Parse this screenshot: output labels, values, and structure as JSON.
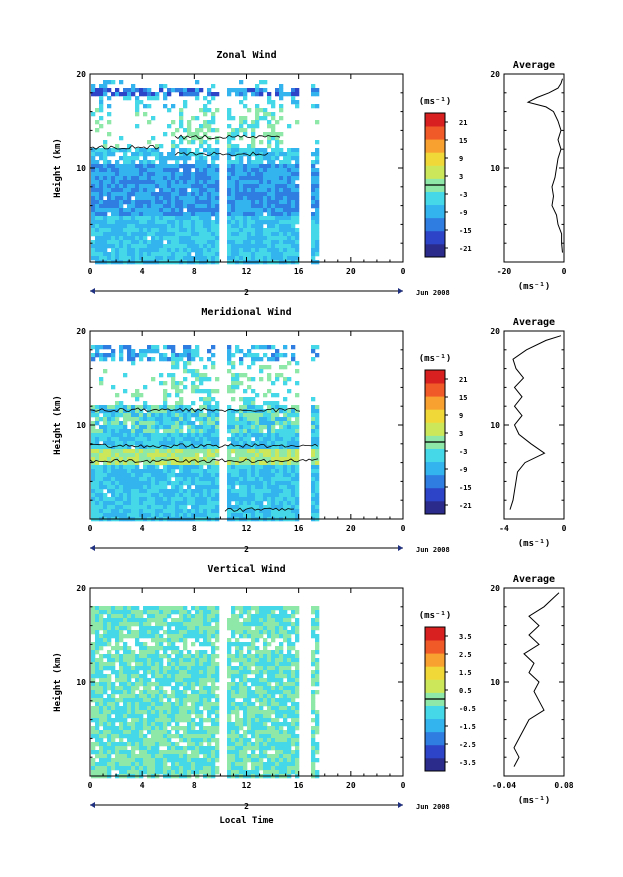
{
  "figure": {
    "xlabel": "Local Time",
    "date_label": "Jun 2008",
    "day_label": "2",
    "y_axis_label": "Height (km)",
    "unit_label": "(ms⁻¹)",
    "average_title": "Average",
    "average_unit": "(ms⁻¹)",
    "x_tick_labels": [
      "0",
      "4",
      "8",
      "12",
      "16",
      "20",
      "0"
    ],
    "y_tick_labels": [
      "10",
      "20"
    ]
  },
  "chart_data": [
    {
      "type": "heatmap",
      "title": "Zonal Wind",
      "x_range": [
        0,
        24
      ],
      "y_range": [
        0,
        20
      ],
      "data_gaps_hours": [
        [
          9.9,
          10.3
        ],
        [
          16.2,
          16.7
        ]
      ],
      "data_end_hour": 17.4,
      "colorbar": {
        "ticks": [
          "21",
          "15",
          "9",
          "3",
          "-3",
          "-9",
          "-15",
          "-21"
        ],
        "min": -24,
        "max": 24,
        "colors": [
          "#2b2b8c",
          "#2d44c8",
          "#2f7de0",
          "#34b4ee",
          "#44d8e8",
          "#8ee8a8",
          "#cce85a",
          "#f0d838",
          "#f8a030",
          "#f05a28",
          "#d82020"
        ]
      },
      "average_profile": {
        "xlim": [
          -20,
          0
        ],
        "x_tick_labels": [
          "-20",
          "0"
        ],
        "height_km": [
          1.0,
          2.0,
          3.0,
          4.0,
          5.0,
          6.0,
          7.0,
          8.0,
          9.0,
          10.0,
          11.0,
          12.0,
          13.0,
          14.0,
          15.0,
          16.0,
          16.5,
          17.0,
          17.5,
          18.0,
          18.5,
          19.0,
          19.5
        ],
        "wind_ms": [
          -0.5,
          -0.8,
          -0.8,
          -2.0,
          -2.5,
          -4.0,
          -3.5,
          -4.0,
          -3.0,
          -2.5,
          -2.0,
          -1.0,
          -2.0,
          -1.0,
          -2.0,
          -3.5,
          -6.0,
          -12.0,
          -9.0,
          -5.0,
          -2.0,
          -1.0,
          -0.5
        ]
      }
    },
    {
      "type": "heatmap",
      "title": "Meridional Wind",
      "x_range": [
        0,
        24
      ],
      "y_range": [
        0,
        20
      ],
      "data_gaps_hours": [
        [
          9.9,
          10.3
        ],
        [
          16.2,
          16.7
        ]
      ],
      "data_end_hour": 17.4,
      "colorbar": {
        "ticks": [
          "21",
          "15",
          "9",
          "3",
          "-3",
          "-9",
          "-15",
          "-21"
        ],
        "min": -24,
        "max": 24,
        "colors": [
          "#2b2b8c",
          "#2d44c8",
          "#2f7de0",
          "#34b4ee",
          "#44d8e8",
          "#8ee8a8",
          "#cce85a",
          "#f0d838",
          "#f8a030",
          "#f05a28",
          "#d82020"
        ]
      },
      "average_profile": {
        "xlim": [
          -4,
          0
        ],
        "x_tick_labels": [
          "-4",
          "0"
        ],
        "height_km": [
          1.0,
          2.0,
          3.0,
          4.0,
          5.0,
          6.0,
          7.0,
          8.0,
          9.0,
          10.0,
          11.0,
          12.0,
          13.0,
          14.0,
          15.0,
          16.0,
          17.0,
          18.0,
          19.0,
          19.5
        ],
        "wind_ms": [
          -3.6,
          -3.4,
          -3.3,
          -3.2,
          -3.1,
          -2.6,
          -1.3,
          -2.2,
          -3.0,
          -3.3,
          -2.8,
          -3.3,
          -2.8,
          -3.3,
          -2.7,
          -3.2,
          -3.4,
          -2.5,
          -1.2,
          -0.2
        ]
      }
    },
    {
      "type": "heatmap",
      "title": "Vertical Wind",
      "x_range": [
        0,
        24
      ],
      "y_range": [
        0,
        20
      ],
      "data_gaps_hours": [
        [
          9.9,
          10.3
        ],
        [
          16.2,
          16.7
        ]
      ],
      "data_end_hour": 17.4,
      "colorbar": {
        "ticks": [
          "3.5",
          "2.5",
          "1.5",
          "0.5",
          "-0.5",
          "-1.5",
          "-2.5",
          "-3.5"
        ],
        "min": -4,
        "max": 4,
        "colors": [
          "#2b2b8c",
          "#2d44c8",
          "#2f7de0",
          "#34b4ee",
          "#44d8e8",
          "#8ee8a8",
          "#cce85a",
          "#f0d838",
          "#f8a030",
          "#f05a28",
          "#d82020"
        ]
      },
      "average_profile": {
        "xlim": [
          -0.04,
          0.08
        ],
        "x_tick_labels": [
          "-0.04",
          "0.08"
        ],
        "height_km": [
          1.0,
          2.0,
          3.0,
          4.0,
          5.0,
          6.0,
          7.0,
          8.0,
          9.0,
          10.0,
          11.0,
          12.0,
          13.0,
          14.0,
          15.0,
          16.0,
          17.0,
          18.0,
          19.0,
          19.5
        ],
        "wind_ms": [
          -0.02,
          -0.01,
          -0.02,
          -0.01,
          0.0,
          0.01,
          0.04,
          0.03,
          0.02,
          0.03,
          0.01,
          0.02,
          0.0,
          0.03,
          0.01,
          0.03,
          0.01,
          0.04,
          0.06,
          0.07
        ]
      }
    }
  ]
}
